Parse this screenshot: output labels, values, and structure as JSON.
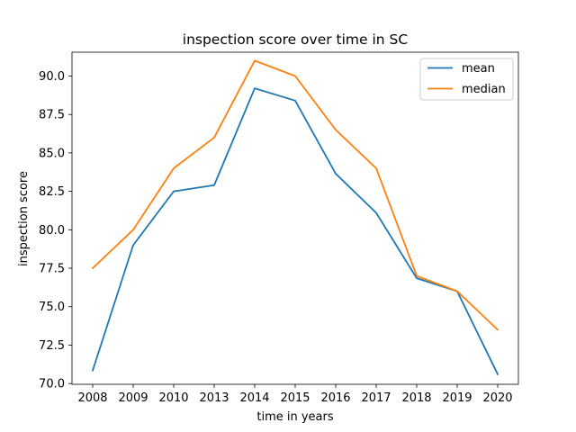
{
  "chart_data": {
    "type": "line",
    "title": "inspection score over time in SC",
    "xlabel": "time in years",
    "ylabel": "inspection score",
    "categories": [
      "2008",
      "2009",
      "2010",
      "2013",
      "2014",
      "2015",
      "2016",
      "2017",
      "2018",
      "2019",
      "2020"
    ],
    "yticks": [
      "70.0",
      "72.5",
      "75.0",
      "77.5",
      "80.0",
      "82.5",
      "85.0",
      "87.5",
      "90.0"
    ],
    "ylim": [
      69.95,
      91.55
    ],
    "grid": false,
    "legend_position": "top-right",
    "series": [
      {
        "name": "mean",
        "color": "#1f77b4",
        "values": [
          70.85,
          79.0,
          82.5,
          82.9,
          89.2,
          88.4,
          83.65,
          81.1,
          76.85,
          76.0,
          70.6
        ]
      },
      {
        "name": "median",
        "color": "#ff7f0e",
        "values": [
          77.5,
          80.0,
          84.0,
          86.0,
          91.0,
          90.0,
          86.5,
          84.0,
          77.0,
          76.0,
          73.5
        ]
      }
    ]
  }
}
